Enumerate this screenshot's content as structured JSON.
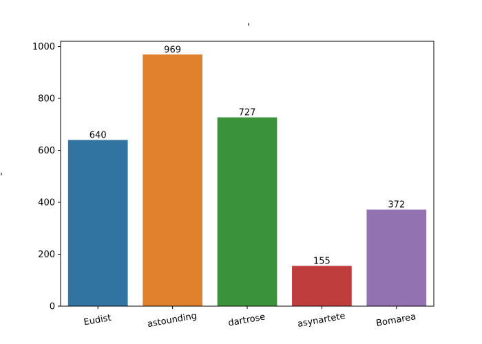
{
  "chart_data": {
    "type": "bar",
    "title": "'",
    "xlabel": "",
    "ylabel": "-",
    "categories": [
      "Eudist",
      "astounding",
      "dartrose",
      "asynartete",
      "Bomarea"
    ],
    "values": [
      640,
      969,
      727,
      155,
      372
    ],
    "colors": [
      "#3274a1",
      "#e1812c",
      "#3a923a",
      "#c03d3e",
      "#9372b2"
    ],
    "ylim": [
      0,
      1020
    ],
    "yticks": [
      0,
      200,
      400,
      600,
      800,
      1000
    ],
    "grid": false,
    "legend": "none",
    "data_labels": true
  }
}
